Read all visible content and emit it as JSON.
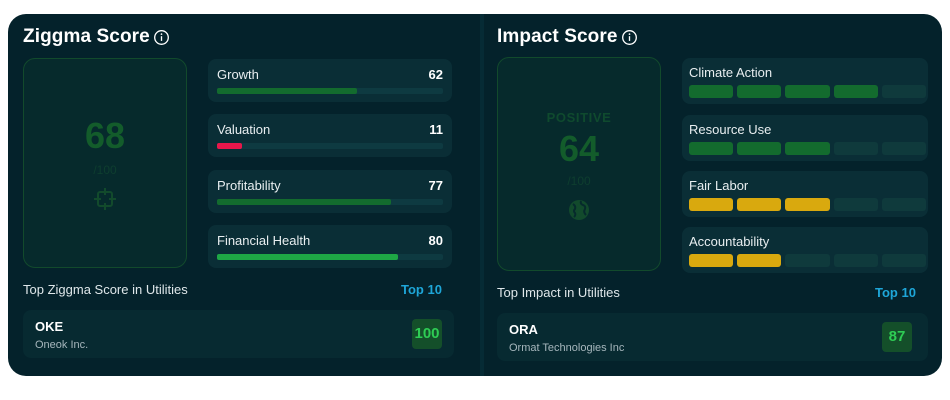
{
  "ziggma": {
    "title": "Ziggma Score",
    "score": "68",
    "denominator": "/100",
    "metrics": [
      {
        "label": "Growth",
        "value": "62",
        "fill": 0.62,
        "color": "#136b2e"
      },
      {
        "label": "Valuation",
        "value": "11",
        "fill": 0.11,
        "color": "#e8174b"
      },
      {
        "label": "Profitability",
        "value": "77",
        "fill": 0.77,
        "color": "#136b2e"
      },
      {
        "label": "Financial Health",
        "value": "80",
        "fill": 0.8,
        "color": "#1ea745"
      }
    ],
    "top_label": "Top Ziggma Score in Utilities",
    "top_badge": "Top 10",
    "company": {
      "ticker": "OKE",
      "name": "Oneok Inc.",
      "score": "100"
    }
  },
  "impact": {
    "title": "Impact Score",
    "rating": "POSITIVE",
    "score": "64",
    "denominator": "/100",
    "metrics": [
      {
        "label": "Climate Action",
        "filled": 4,
        "color": "#136b2e"
      },
      {
        "label": "Resource Use",
        "filled": 3,
        "color": "#136b2e"
      },
      {
        "label": "Fair Labor",
        "filled": 3,
        "color": "#d9a90e"
      },
      {
        "label": "Accountability",
        "filled": 2,
        "color": "#d9a90e"
      }
    ],
    "segments_total": 5,
    "top_label": "Top Impact in Utilities",
    "top_badge": "Top 10",
    "company": {
      "ticker": "ORA",
      "name": "Ormat Technologies Inc",
      "score": "87"
    }
  },
  "icons": {
    "info": "info-circle-icon",
    "target": "crosshair-icon",
    "globe": "globe-icon"
  },
  "colors": {
    "background": "#04222b",
    "accent": "#1ea6d8",
    "positive": "#2ecc54"
  }
}
